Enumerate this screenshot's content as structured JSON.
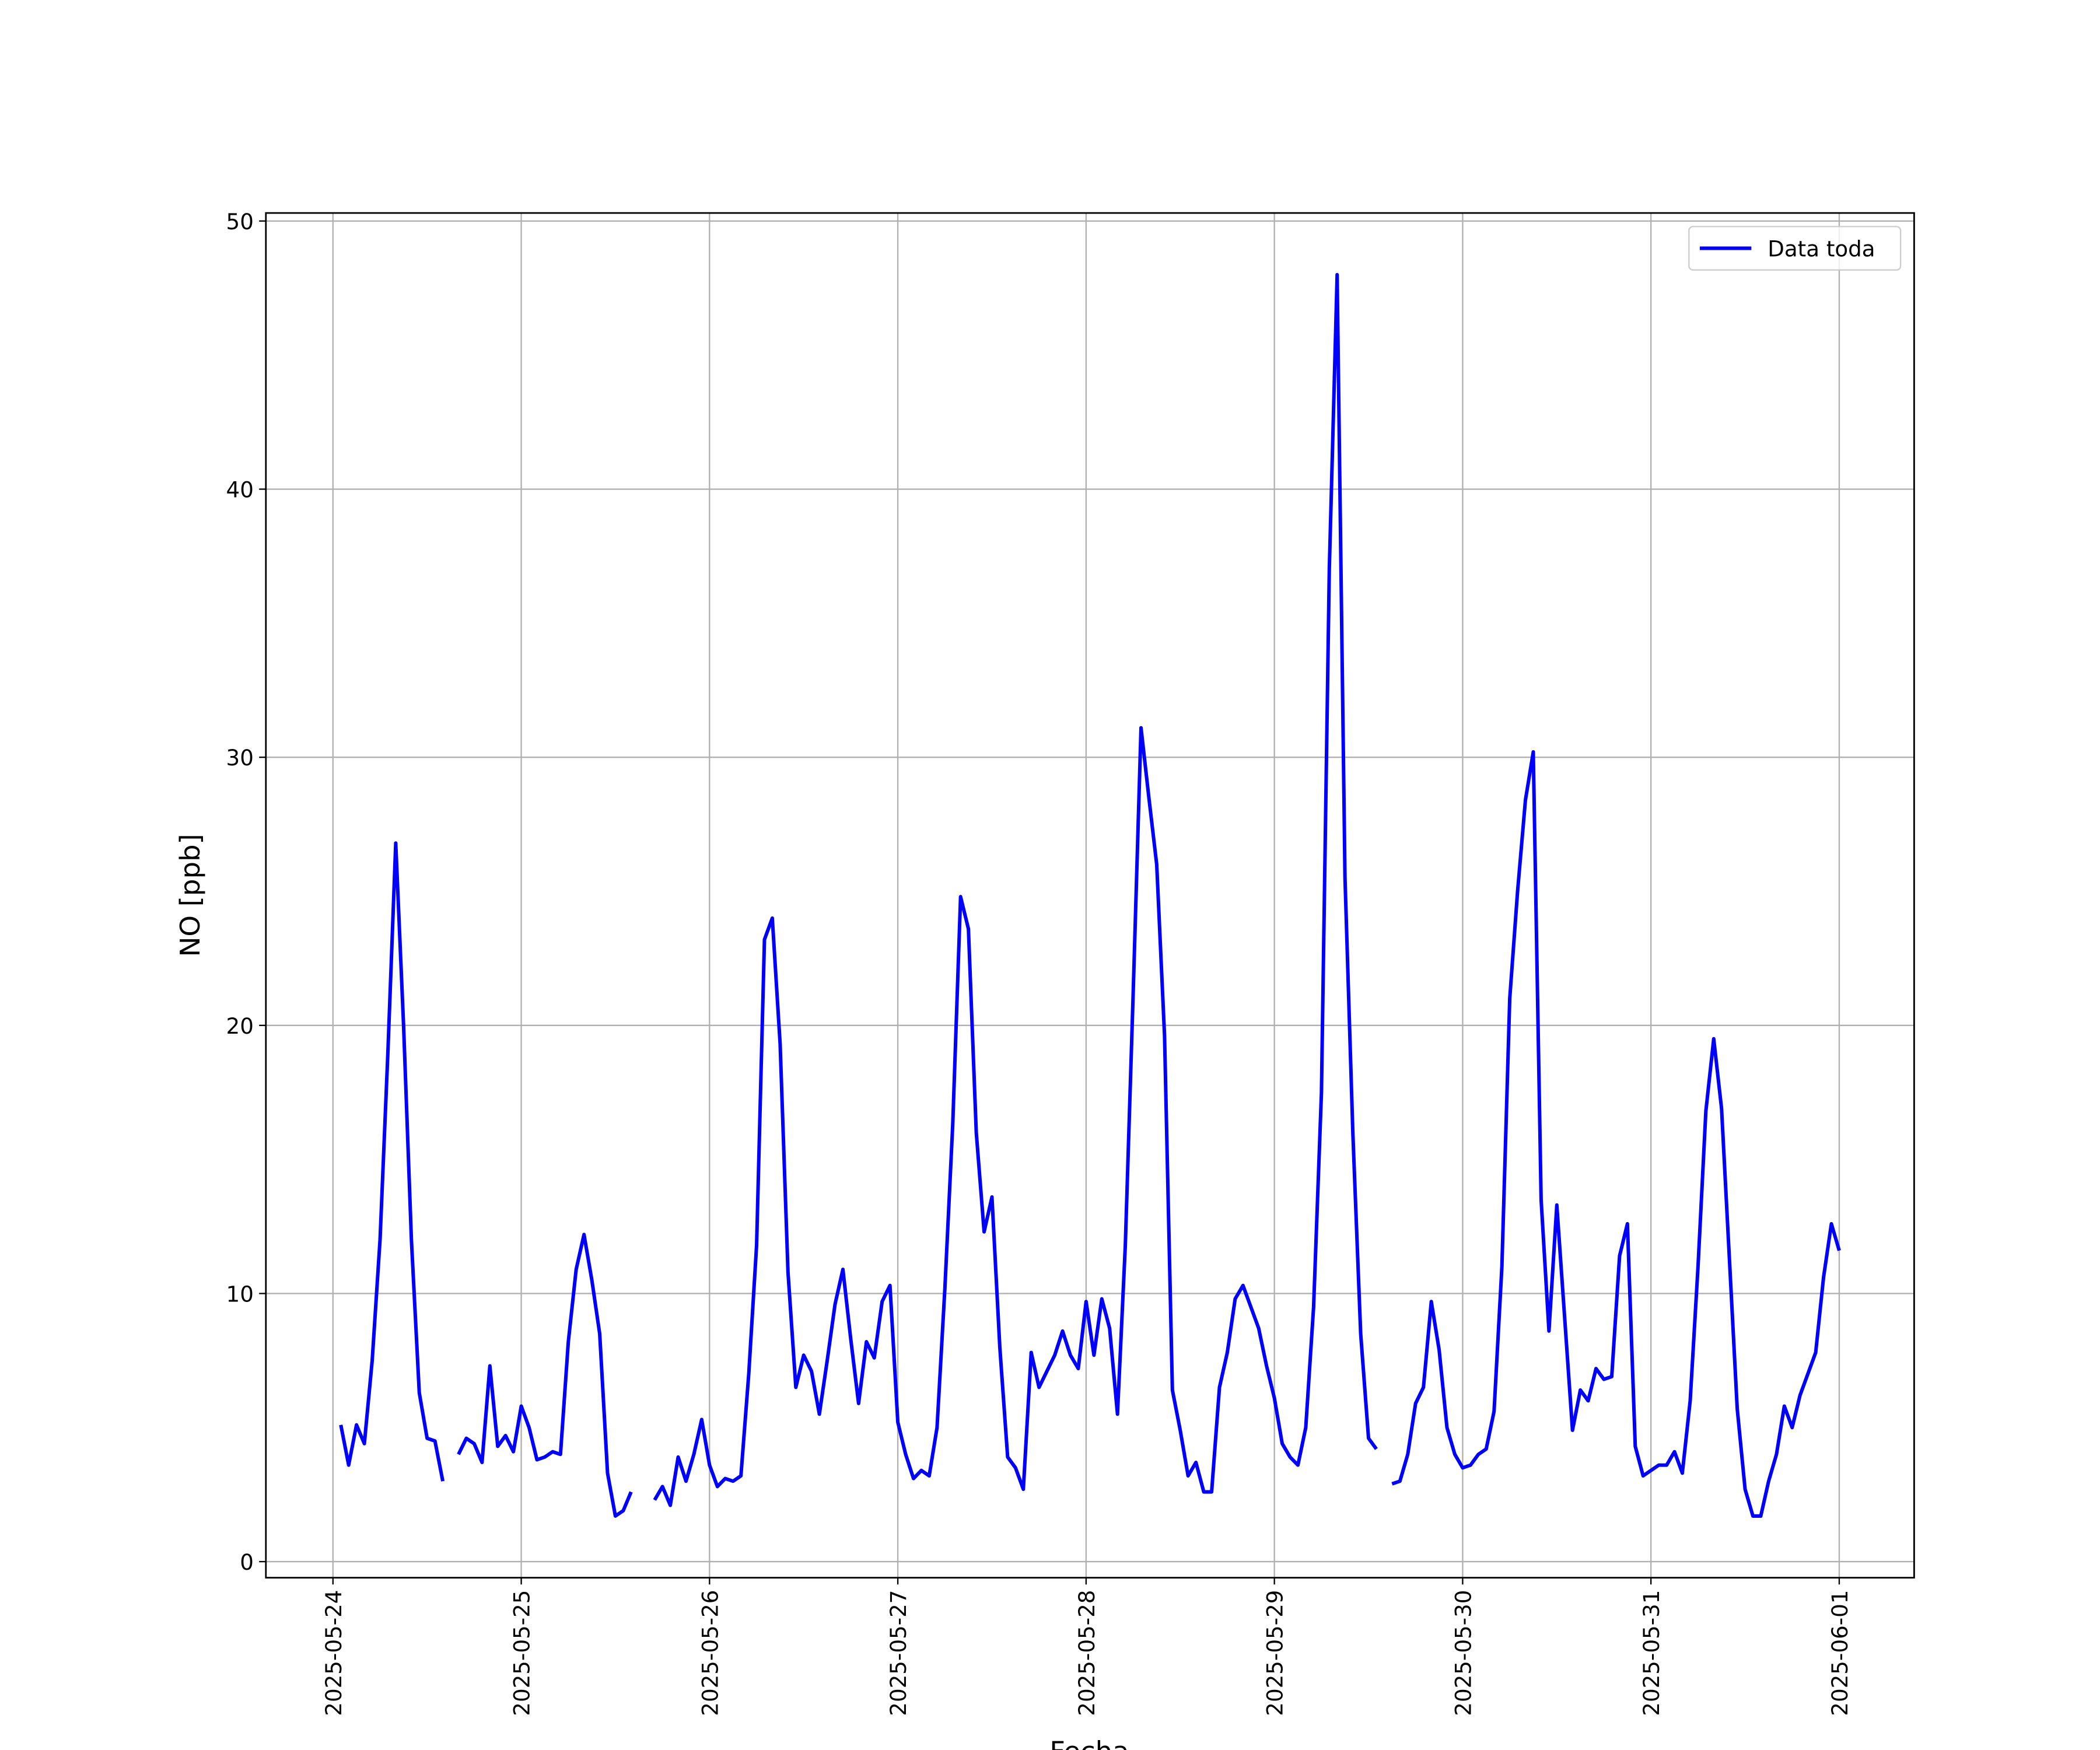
{
  "chart_data": {
    "type": "line",
    "xlabel": "Fecha",
    "ylabel": "NO [ppb]",
    "x": [
      "2025-05-24 01:00",
      "2025-05-24 02:00",
      "2025-05-24 03:00",
      "2025-05-24 04:00",
      "2025-05-24 05:00",
      "2025-05-24 06:00",
      "2025-05-24 07:00",
      "2025-05-24 08:00",
      "2025-05-24 09:00",
      "2025-05-24 10:00",
      "2025-05-24 11:00",
      "2025-05-24 12:00",
      "2025-05-24 13:00",
      "2025-05-24 14:00",
      "2025-05-24 15:00",
      "2025-05-24 16:00",
      "2025-05-24 17:00",
      "2025-05-24 18:00",
      "2025-05-24 19:00",
      "2025-05-24 20:00",
      "2025-05-24 21:00",
      "2025-05-24 22:00",
      "2025-05-24 23:00",
      "2025-05-25 00:00",
      "2025-05-25 01:00",
      "2025-05-25 02:00",
      "2025-05-25 03:00",
      "2025-05-25 04:00",
      "2025-05-25 05:00",
      "2025-05-25 06:00",
      "2025-05-25 07:00",
      "2025-05-25 08:00",
      "2025-05-25 09:00",
      "2025-05-25 10:00",
      "2025-05-25 11:00",
      "2025-05-25 12:00",
      "2025-05-25 13:00",
      "2025-05-25 14:00",
      "2025-05-25 15:00",
      "2025-05-25 16:00",
      "2025-05-25 17:00",
      "2025-05-25 18:00",
      "2025-05-25 19:00",
      "2025-05-25 20:00",
      "2025-05-25 21:00",
      "2025-05-25 22:00",
      "2025-05-25 23:00",
      "2025-05-26 00:00",
      "2025-05-26 01:00",
      "2025-05-26 02:00",
      "2025-05-26 03:00",
      "2025-05-26 04:00",
      "2025-05-26 05:00",
      "2025-05-26 06:00",
      "2025-05-26 07:00",
      "2025-05-26 08:00",
      "2025-05-26 09:00",
      "2025-05-26 10:00",
      "2025-05-26 11:00",
      "2025-05-26 12:00",
      "2025-05-26 13:00",
      "2025-05-26 14:00",
      "2025-05-26 15:00",
      "2025-05-26 16:00",
      "2025-05-26 17:00",
      "2025-05-26 18:00",
      "2025-05-26 19:00",
      "2025-05-26 20:00",
      "2025-05-26 21:00",
      "2025-05-26 22:00",
      "2025-05-26 23:00",
      "2025-05-27 00:00",
      "2025-05-27 01:00",
      "2025-05-27 02:00",
      "2025-05-27 03:00",
      "2025-05-27 04:00",
      "2025-05-27 05:00",
      "2025-05-27 06:00",
      "2025-05-27 07:00",
      "2025-05-27 08:00",
      "2025-05-27 09:00",
      "2025-05-27 10:00",
      "2025-05-27 11:00",
      "2025-05-27 12:00",
      "2025-05-27 13:00",
      "2025-05-27 14:00",
      "2025-05-27 15:00",
      "2025-05-27 16:00",
      "2025-05-27 17:00",
      "2025-05-27 18:00",
      "2025-05-27 19:00",
      "2025-05-27 20:00",
      "2025-05-27 21:00",
      "2025-05-27 22:00",
      "2025-05-27 23:00",
      "2025-05-28 00:00",
      "2025-05-28 01:00",
      "2025-05-28 02:00",
      "2025-05-28 03:00",
      "2025-05-28 04:00",
      "2025-05-28 05:00",
      "2025-05-28 06:00",
      "2025-05-28 07:00",
      "2025-05-28 08:00",
      "2025-05-28 09:00",
      "2025-05-28 10:00",
      "2025-05-28 11:00",
      "2025-05-28 12:00",
      "2025-05-28 13:00",
      "2025-05-28 14:00",
      "2025-05-28 15:00",
      "2025-05-28 16:00",
      "2025-05-28 17:00",
      "2025-05-28 18:00",
      "2025-05-28 19:00",
      "2025-05-28 20:00",
      "2025-05-28 21:00",
      "2025-05-28 22:00",
      "2025-05-28 23:00",
      "2025-05-29 00:00",
      "2025-05-29 01:00",
      "2025-05-29 02:00",
      "2025-05-29 03:00",
      "2025-05-29 04:00",
      "2025-05-29 05:00",
      "2025-05-29 06:00",
      "2025-05-29 07:00",
      "2025-05-29 08:00",
      "2025-05-29 09:00",
      "2025-05-29 10:00",
      "2025-05-29 11:00",
      "2025-05-29 12:00",
      "2025-05-29 13:00",
      "2025-05-29 14:00",
      "2025-05-29 15:00",
      "2025-05-29 16:00",
      "2025-05-29 17:00",
      "2025-05-29 18:00",
      "2025-05-29 19:00",
      "2025-05-29 20:00",
      "2025-05-29 21:00",
      "2025-05-29 22:00",
      "2025-05-29 23:00",
      "2025-05-30 00:00",
      "2025-05-30 01:00",
      "2025-05-30 02:00",
      "2025-05-30 03:00",
      "2025-05-30 04:00",
      "2025-05-30 05:00",
      "2025-05-30 06:00",
      "2025-05-30 07:00",
      "2025-05-30 08:00",
      "2025-05-30 09:00",
      "2025-05-30 10:00",
      "2025-05-30 11:00",
      "2025-05-30 12:00",
      "2025-05-30 13:00",
      "2025-05-30 14:00",
      "2025-05-30 15:00",
      "2025-05-30 16:00",
      "2025-05-30 17:00",
      "2025-05-30 18:00",
      "2025-05-30 19:00",
      "2025-05-30 20:00",
      "2025-05-30 21:00",
      "2025-05-30 22:00",
      "2025-05-30 23:00",
      "2025-05-31 00:00",
      "2025-05-31 01:00",
      "2025-05-31 02:00",
      "2025-05-31 03:00",
      "2025-05-31 04:00",
      "2025-05-31 05:00",
      "2025-05-31 06:00",
      "2025-05-31 07:00",
      "2025-05-31 08:00",
      "2025-05-31 09:00",
      "2025-05-31 10:00",
      "2025-05-31 11:00",
      "2025-05-31 12:00",
      "2025-05-31 13:00",
      "2025-05-31 14:00",
      "2025-05-31 15:00",
      "2025-05-31 16:00",
      "2025-05-31 17:00",
      "2025-05-31 18:00",
      "2025-05-31 19:00",
      "2025-05-31 20:00",
      "2025-05-31 21:00",
      "2025-05-31 22:00",
      "2025-05-31 23:00",
      "2025-06-01 00:00"
    ],
    "series": [
      {
        "name": "Data toda",
        "color": "#0000ff",
        "values": [
          5.1,
          3.6,
          5.1,
          4.4,
          7.5,
          12,
          19,
          26.8,
          20,
          12,
          6.3,
          4.6,
          4.5,
          3.0,
          null,
          4.0,
          4.6,
          4.4,
          3.7,
          7.3,
          4.3,
          4.7,
          4.1,
          5.8,
          5.0,
          3.8,
          3.9,
          4.1,
          4.0,
          8.2,
          10.9,
          12.2,
          10.5,
          8.5,
          3.3,
          1.7,
          1.9,
          2.6,
          null,
          null,
          2.3,
          2.8,
          2.1,
          3.9,
          3.0,
          4.0,
          5.3,
          3.6,
          2.8,
          3.1,
          3.0,
          3.2,
          7.0,
          11.8,
          23.2,
          24.0,
          19.3,
          10.8,
          6.5,
          7.7,
          7.1,
          5.5,
          7.5,
          9.6,
          10.9,
          8.3,
          5.9,
          8.2,
          7.6,
          9.7,
          10.3,
          5.2,
          4.0,
          3.1,
          3.4,
          3.2,
          5.0,
          10.2,
          16.3,
          24.8,
          23.6,
          16.0,
          12.3,
          13.6,
          8.0,
          3.9,
          3.5,
          2.7,
          7.8,
          6.5,
          7.1,
          7.7,
          8.6,
          7.7,
          7.2,
          9.7,
          7.7,
          9.8,
          8.7,
          5.5,
          11.8,
          21.2,
          31.1,
          28.5,
          26.0,
          19.6,
          6.4,
          4.9,
          3.2,
          3.7,
          2.6,
          2.6,
          6.5,
          7.8,
          9.8,
          10.3,
          9.5,
          8.7,
          7.3,
          6.1,
          4.4,
          3.9,
          3.6,
          5.0,
          9.5,
          17.5,
          37.0,
          48.0,
          25.5,
          16.0,
          8.5,
          4.6,
          4.2,
          null,
          2.9,
          3.0,
          4.0,
          5.9,
          6.5,
          9.7,
          7.9,
          5.0,
          4.0,
          3.5,
          3.6,
          4.0,
          4.2,
          5.6,
          11.0,
          21.0,
          25.0,
          28.4,
          30.2,
          13.5,
          8.6,
          13.3,
          9.1,
          4.9,
          6.4,
          6.0,
          7.2,
          6.8,
          6.9,
          11.4,
          12.6,
          4.3,
          3.2,
          3.4,
          3.6,
          3.6,
          4.1,
          3.3,
          6.0,
          11.0,
          16.8,
          19.5,
          16.9,
          11.3,
          5.7,
          2.7,
          1.7,
          1.7,
          3.0,
          4.0,
          5.8,
          5.0,
          6.2,
          7.0,
          7.8,
          10.6,
          12.6,
          11.6
        ]
      }
    ],
    "xlim": [
      "2025-05-23 15:27",
      "2025-06-01 09:33"
    ],
    "xticks": [
      "2025-05-24",
      "2025-05-25",
      "2025-05-26",
      "2025-05-27",
      "2025-05-28",
      "2025-05-29",
      "2025-05-30",
      "2025-05-31",
      "2025-06-01"
    ],
    "ylim": [
      -0.6,
      50.3
    ],
    "yticks": [
      0,
      10,
      20,
      30,
      40,
      50
    ],
    "grid": true,
    "legend": "upper right"
  }
}
